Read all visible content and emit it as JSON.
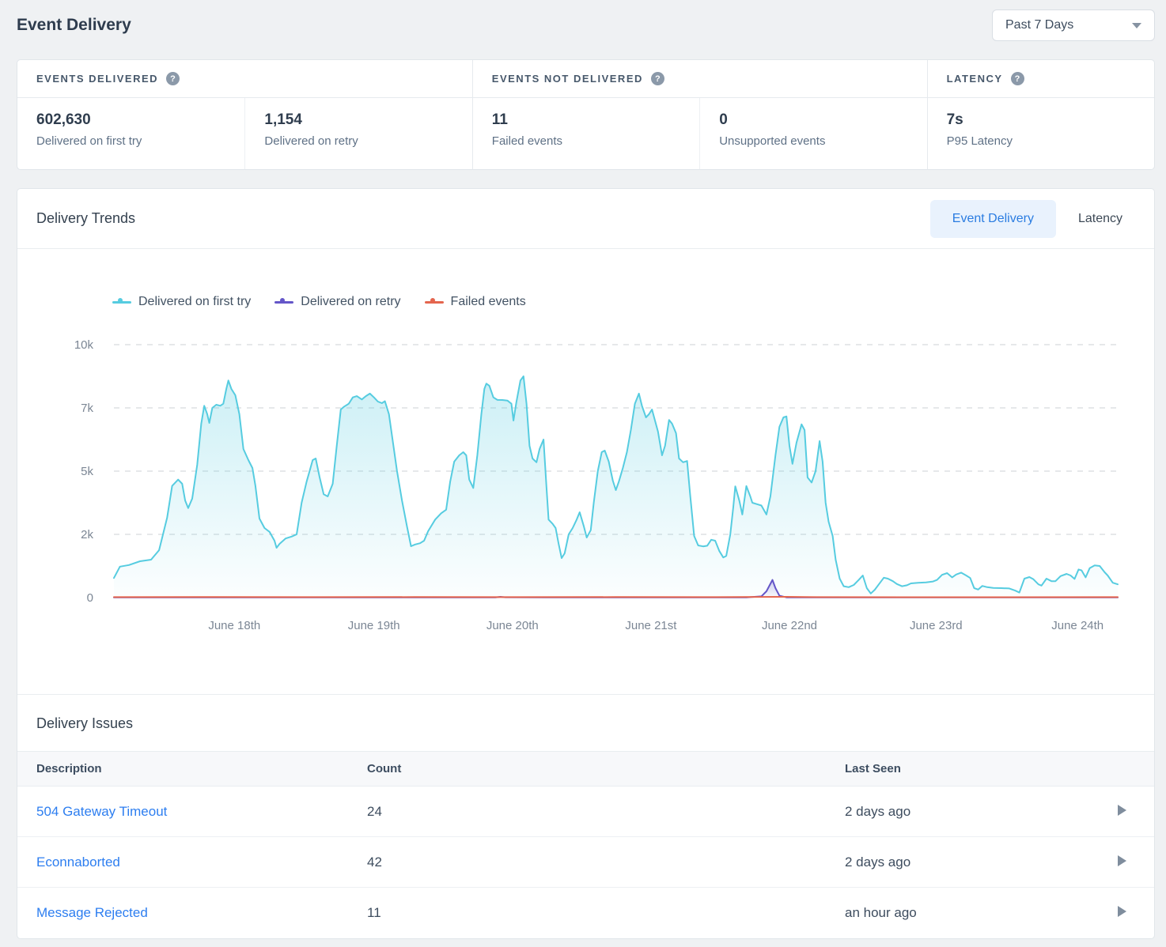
{
  "page": {
    "title": "Event Delivery"
  },
  "controls": {
    "date_range": {
      "value": "Past 7 Days"
    }
  },
  "stats": {
    "sections": [
      {
        "label": "EVENTS DELIVERED",
        "metrics": [
          {
            "value": "602,630",
            "label": "Delivered on first try"
          },
          {
            "value": "1,154",
            "label": "Delivered on retry"
          }
        ]
      },
      {
        "label": "EVENTS NOT DELIVERED",
        "metrics": [
          {
            "value": "11",
            "label": "Failed events"
          },
          {
            "value": "0",
            "label": "Unsupported events"
          }
        ]
      },
      {
        "label": "LATENCY",
        "metrics": [
          {
            "value": "7s",
            "label": "P95 Latency"
          }
        ]
      }
    ]
  },
  "trends": {
    "title": "Delivery Trends",
    "tabs": [
      {
        "label": "Event Delivery"
      },
      {
        "label": "Latency"
      }
    ]
  },
  "chart_data": {
    "type": "area",
    "title": "Delivery Trends — Event Delivery",
    "grid": "horizontal-dashed",
    "legend_position": "top-left",
    "grid_color": "#ccd0d5",
    "axis_text_color": "#7b8694",
    "y_ticks": [
      {
        "value": 0,
        "label": "0"
      },
      {
        "value": 2000,
        "label": "2k"
      },
      {
        "value": 5000,
        "label": "5k"
      },
      {
        "value": 7000,
        "label": "7k"
      },
      {
        "value": 10000,
        "label": "10k"
      }
    ],
    "x_ticks": [
      {
        "f": 0.12,
        "label": "June 18th"
      },
      {
        "f": 0.259,
        "label": "June 19th"
      },
      {
        "f": 0.397,
        "label": "June 20th"
      },
      {
        "f": 0.535,
        "label": "June 21st"
      },
      {
        "f": 0.673,
        "label": "June 22nd"
      },
      {
        "f": 0.819,
        "label": "June 23rd"
      },
      {
        "f": 0.96,
        "label": "June 24th"
      }
    ],
    "series": [
      {
        "name": "Delivered on first try",
        "color": "#56cce0",
        "fill_from": "rgba(86,204,224,0.30)",
        "fill_to": "rgba(86,204,224,0.02)",
        "points": [
          [
            0.0,
            620
          ],
          [
            0.006,
            980
          ],
          [
            0.015,
            1030
          ],
          [
            0.026,
            1150
          ],
          [
            0.037,
            1200
          ],
          [
            0.045,
            1500
          ],
          [
            0.053,
            2800
          ],
          [
            0.058,
            4300
          ],
          [
            0.064,
            4600
          ],
          [
            0.068,
            4400
          ],
          [
            0.071,
            3600
          ],
          [
            0.074,
            3250
          ],
          [
            0.078,
            3700
          ],
          [
            0.083,
            5200
          ],
          [
            0.087,
            6500
          ],
          [
            0.09,
            7100
          ],
          [
            0.093,
            6800
          ],
          [
            0.095,
            6525
          ],
          [
            0.098,
            7000
          ],
          [
            0.102,
            7150
          ],
          [
            0.106,
            7100
          ],
          [
            0.109,
            7200
          ],
          [
            0.112,
            7900
          ],
          [
            0.114,
            8300
          ],
          [
            0.117,
            7900
          ],
          [
            0.121,
            7600
          ],
          [
            0.125,
            6800
          ],
          [
            0.129,
            5700
          ],
          [
            0.134,
            5350
          ],
          [
            0.138,
            5100
          ],
          [
            0.141,
            4300
          ],
          [
            0.145,
            2750
          ],
          [
            0.15,
            2300
          ],
          [
            0.155,
            2120
          ],
          [
            0.16,
            1800
          ],
          [
            0.162,
            1575
          ],
          [
            0.165,
            1700
          ],
          [
            0.171,
            1870
          ],
          [
            0.177,
            1930
          ],
          [
            0.182,
            2000
          ],
          [
            0.187,
            3500
          ],
          [
            0.192,
            4500
          ],
          [
            0.198,
            5350
          ],
          [
            0.201,
            5400
          ],
          [
            0.205,
            4700
          ],
          [
            0.209,
            3900
          ],
          [
            0.213,
            3800
          ],
          [
            0.218,
            4400
          ],
          [
            0.222,
            5800
          ],
          [
            0.226,
            6950
          ],
          [
            0.229,
            7050
          ],
          [
            0.234,
            7200
          ],
          [
            0.238,
            7500
          ],
          [
            0.242,
            7560
          ],
          [
            0.247,
            7400
          ],
          [
            0.251,
            7560
          ],
          [
            0.255,
            7680
          ],
          [
            0.259,
            7500
          ],
          [
            0.263,
            7300
          ],
          [
            0.267,
            7225
          ],
          [
            0.27,
            7320
          ],
          [
            0.274,
            6800
          ],
          [
            0.278,
            5900
          ],
          [
            0.282,
            5000
          ],
          [
            0.287,
            3600
          ],
          [
            0.292,
            2375
          ],
          [
            0.296,
            1625
          ],
          [
            0.3,
            1680
          ],
          [
            0.305,
            1720
          ],
          [
            0.309,
            1800
          ],
          [
            0.313,
            2150
          ],
          [
            0.32,
            2700
          ],
          [
            0.326,
            3000
          ],
          [
            0.331,
            3170
          ],
          [
            0.335,
            4500
          ],
          [
            0.339,
            5300
          ],
          [
            0.344,
            5500
          ],
          [
            0.348,
            5600
          ],
          [
            0.351,
            5500
          ],
          [
            0.354,
            4600
          ],
          [
            0.358,
            4200
          ],
          [
            0.362,
            5500
          ],
          [
            0.366,
            6800
          ],
          [
            0.369,
            7900
          ],
          [
            0.371,
            8150
          ],
          [
            0.374,
            8050
          ],
          [
            0.378,
            7500
          ],
          [
            0.382,
            7380
          ],
          [
            0.387,
            7375
          ],
          [
            0.392,
            7350
          ],
          [
            0.396,
            7200
          ],
          [
            0.398,
            6600
          ],
          [
            0.401,
            7300
          ],
          [
            0.405,
            8300
          ],
          [
            0.408,
            8500
          ],
          [
            0.411,
            7200
          ],
          [
            0.414,
            5800
          ],
          [
            0.417,
            5400
          ],
          [
            0.421,
            5280
          ],
          [
            0.424,
            5700
          ],
          [
            0.428,
            6000
          ],
          [
            0.431,
            4200
          ],
          [
            0.433,
            2700
          ],
          [
            0.437,
            2500
          ],
          [
            0.44,
            2300
          ],
          [
            0.443,
            1700
          ],
          [
            0.446,
            1250
          ],
          [
            0.449,
            1400
          ],
          [
            0.453,
            2000
          ],
          [
            0.457,
            2300
          ],
          [
            0.461,
            2700
          ],
          [
            0.464,
            3050
          ],
          [
            0.468,
            2400
          ],
          [
            0.471,
            1900
          ],
          [
            0.475,
            2200
          ],
          [
            0.478,
            3500
          ],
          [
            0.482,
            5000
          ],
          [
            0.486,
            5600
          ],
          [
            0.489,
            5650
          ],
          [
            0.493,
            5300
          ],
          [
            0.497,
            4550
          ],
          [
            0.5,
            4100
          ],
          [
            0.503,
            4500
          ],
          [
            0.507,
            5100
          ],
          [
            0.511,
            5600
          ],
          [
            0.515,
            6300
          ],
          [
            0.519,
            7200
          ],
          [
            0.523,
            7680
          ],
          [
            0.526,
            7100
          ],
          [
            0.53,
            6700
          ],
          [
            0.533,
            6800
          ],
          [
            0.536,
            6950
          ],
          [
            0.539,
            6600
          ],
          [
            0.542,
            6250
          ],
          [
            0.546,
            5500
          ],
          [
            0.549,
            5800
          ],
          [
            0.553,
            6620
          ],
          [
            0.556,
            6500
          ],
          [
            0.56,
            6200
          ],
          [
            0.563,
            5400
          ],
          [
            0.567,
            5280
          ],
          [
            0.571,
            5320
          ],
          [
            0.574,
            3900
          ],
          [
            0.578,
            1950
          ],
          [
            0.582,
            1650
          ],
          [
            0.587,
            1620
          ],
          [
            0.591,
            1640
          ],
          [
            0.595,
            1830
          ],
          [
            0.599,
            1800
          ],
          [
            0.603,
            1480
          ],
          [
            0.607,
            1270
          ],
          [
            0.61,
            1320
          ],
          [
            0.614,
            2000
          ],
          [
            0.617,
            3300
          ],
          [
            0.619,
            4280
          ],
          [
            0.623,
            3600
          ],
          [
            0.626,
            2940
          ],
          [
            0.628,
            3600
          ],
          [
            0.63,
            4290
          ],
          [
            0.634,
            3800
          ],
          [
            0.636,
            3500
          ],
          [
            0.641,
            3430
          ],
          [
            0.645,
            3370
          ],
          [
            0.65,
            2940
          ],
          [
            0.654,
            3800
          ],
          [
            0.659,
            5500
          ],
          [
            0.663,
            6400
          ],
          [
            0.667,
            6700
          ],
          [
            0.67,
            6730
          ],
          [
            0.673,
            5800
          ],
          [
            0.676,
            5230
          ],
          [
            0.68,
            5900
          ],
          [
            0.685,
            6480
          ],
          [
            0.688,
            6300
          ],
          [
            0.691,
            4700
          ],
          [
            0.695,
            4460
          ],
          [
            0.699,
            5000
          ],
          [
            0.703,
            5950
          ],
          [
            0.706,
            5300
          ],
          [
            0.709,
            3500
          ],
          [
            0.712,
            2600
          ],
          [
            0.716,
            1950
          ],
          [
            0.719,
            1200
          ],
          [
            0.723,
            600
          ],
          [
            0.727,
            360
          ],
          [
            0.732,
            330
          ],
          [
            0.737,
            400
          ],
          [
            0.742,
            560
          ],
          [
            0.746,
            700
          ],
          [
            0.75,
            300
          ],
          [
            0.754,
            130
          ],
          [
            0.758,
            250
          ],
          [
            0.762,
            420
          ],
          [
            0.767,
            630
          ],
          [
            0.771,
            600
          ],
          [
            0.776,
            520
          ],
          [
            0.78,
            430
          ],
          [
            0.785,
            360
          ],
          [
            0.79,
            390
          ],
          [
            0.794,
            450
          ],
          [
            0.801,
            470
          ],
          [
            0.809,
            480
          ],
          [
            0.816,
            510
          ],
          [
            0.82,
            560
          ],
          [
            0.825,
            720
          ],
          [
            0.83,
            775
          ],
          [
            0.835,
            640
          ],
          [
            0.839,
            730
          ],
          [
            0.844,
            790
          ],
          [
            0.849,
            700
          ],
          [
            0.853,
            620
          ],
          [
            0.857,
            300
          ],
          [
            0.861,
            255
          ],
          [
            0.865,
            370
          ],
          [
            0.87,
            330
          ],
          [
            0.876,
            305
          ],
          [
            0.884,
            300
          ],
          [
            0.892,
            290
          ],
          [
            0.898,
            220
          ],
          [
            0.902,
            160
          ],
          [
            0.907,
            600
          ],
          [
            0.912,
            650
          ],
          [
            0.916,
            580
          ],
          [
            0.921,
            420
          ],
          [
            0.924,
            380
          ],
          [
            0.929,
            600
          ],
          [
            0.934,
            520
          ],
          [
            0.938,
            520
          ],
          [
            0.943,
            680
          ],
          [
            0.949,
            750
          ],
          [
            0.953,
            700
          ],
          [
            0.957,
            590
          ],
          [
            0.961,
            890
          ],
          [
            0.964,
            860
          ],
          [
            0.968,
            640
          ],
          [
            0.972,
            930
          ],
          [
            0.977,
            1020
          ],
          [
            0.982,
            1000
          ],
          [
            0.987,
            800
          ],
          [
            0.99,
            700
          ],
          [
            0.995,
            470
          ],
          [
            1.0,
            420
          ]
        ]
      },
      {
        "name": "Delivered on retry",
        "color": "#6456c8",
        "fill_from": "rgba(100,86,200,0.30)",
        "fill_to": "rgba(100,86,200,0.02)",
        "points": [
          [
            0.0,
            5
          ],
          [
            0.38,
            5
          ],
          [
            0.385,
            25
          ],
          [
            0.39,
            10
          ],
          [
            0.43,
            5
          ],
          [
            0.63,
            5
          ],
          [
            0.645,
            40
          ],
          [
            0.65,
            200
          ],
          [
            0.656,
            560
          ],
          [
            0.659,
            300
          ],
          [
            0.663,
            60
          ],
          [
            0.67,
            8
          ],
          [
            0.8,
            5
          ],
          [
            1.0,
            5
          ]
        ]
      },
      {
        "name": "Failed events",
        "color": "#e4654e",
        "points": [
          [
            0.0,
            15
          ],
          [
            0.1,
            20
          ],
          [
            0.2,
            15
          ],
          [
            0.3,
            18
          ],
          [
            0.4,
            15
          ],
          [
            0.5,
            18
          ],
          [
            0.6,
            15
          ],
          [
            0.67,
            25
          ],
          [
            0.7,
            15
          ],
          [
            0.85,
            12
          ],
          [
            1.0,
            15
          ]
        ]
      }
    ]
  },
  "issues": {
    "title": "Delivery Issues",
    "columns": {
      "description": "Description",
      "count": "Count",
      "last_seen": "Last Seen"
    },
    "rows": [
      {
        "description": "504 Gateway Timeout",
        "count": "24",
        "last_seen": "2 days ago"
      },
      {
        "description": "Econnaborted",
        "count": "42",
        "last_seen": "2 days ago"
      },
      {
        "description": "Message Rejected",
        "count": "11",
        "last_seen": "an hour ago"
      }
    ]
  },
  "colors": {
    "accent_blue": "#2a7ce1",
    "tab_active_bg": "#e9f2fd",
    "link_blue": "#2d7ef0",
    "series_first_try": "#56cce0",
    "series_retry": "#6456c8",
    "series_failed": "#e4654e",
    "page_bg": "#eff1f3",
    "card_border": "#e1e6ea"
  }
}
